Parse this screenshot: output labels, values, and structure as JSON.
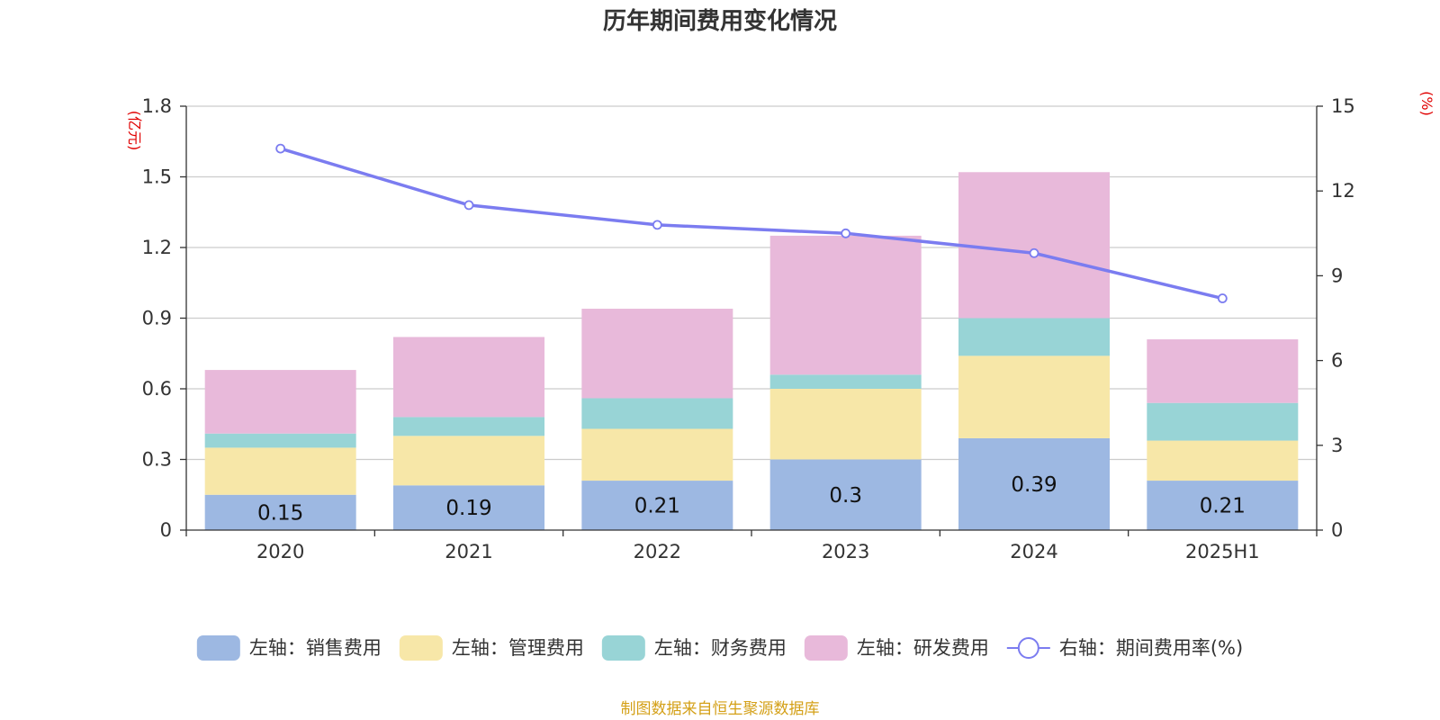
{
  "chart_data": {
    "type": "bar",
    "stacked": true,
    "title": "历年期间费用变化情况",
    "categories": [
      "2020",
      "2021",
      "2022",
      "2023",
      "2024",
      "2025H1"
    ],
    "y_left": {
      "unit": "(亿元)",
      "ylim": [
        0,
        1.8
      ],
      "ticks": [
        0,
        0.3,
        0.6,
        0.9,
        1.2,
        1.5,
        1.8
      ]
    },
    "y_right": {
      "unit": "(%)",
      "ylim": [
        0,
        15
      ],
      "ticks": [
        0,
        3,
        6,
        9,
        12,
        15
      ]
    },
    "grid": true,
    "legend_position": "bottom",
    "series": [
      {
        "name": "左轴：销售费用",
        "color": "#9db8e2",
        "values": [
          0.15,
          0.19,
          0.21,
          0.3,
          0.39,
          0.21
        ],
        "labels": [
          "0.15",
          "0.19",
          "0.21",
          "0.3",
          "0.39",
          "0.21"
        ]
      },
      {
        "name": "左轴：管理费用",
        "color": "#f7e7a8",
        "values": [
          0.2,
          0.21,
          0.22,
          0.3,
          0.35,
          0.17
        ]
      },
      {
        "name": "左轴：财务费用",
        "color": "#98d4d6",
        "values": [
          0.06,
          0.08,
          0.13,
          0.06,
          0.16,
          0.16
        ]
      },
      {
        "name": "左轴：研发费用",
        "color": "#e8b9da",
        "values": [
          0.27,
          0.34,
          0.38,
          0.59,
          0.62,
          0.27
        ]
      }
    ],
    "line": {
      "name": "右轴：期间费用率(%)",
      "color": "#7b7cf0",
      "axis": "right",
      "values": [
        13.5,
        11.5,
        10.8,
        10.5,
        9.8,
        8.2
      ]
    }
  },
  "source_note": "制图数据来自恒生聚源数据库"
}
